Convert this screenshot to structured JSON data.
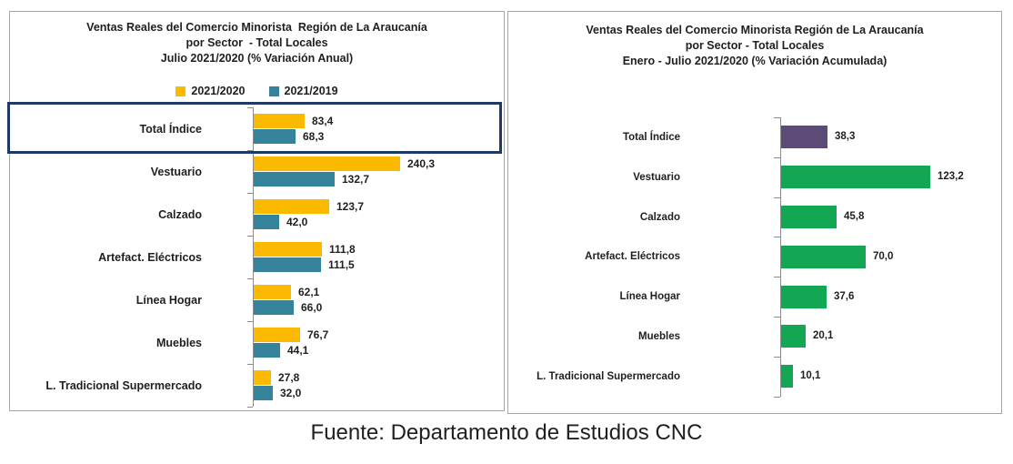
{
  "footer": {
    "source": "Fuente: Departamento de Estudios CNC"
  },
  "colors": {
    "yellow": "#FBBA00",
    "teal": "#35839B",
    "green": "#13A653",
    "purple": "#5C4A77",
    "highlight_border": "#1F3864",
    "panel_border": "#A6A6A6",
    "axis": "#8C8C8C",
    "text": "#1F1F1F"
  },
  "chart_data": [
    {
      "type": "bar",
      "orientation": "horizontal",
      "title": "Ventas Reales del Comercio Minorista  Región de La Araucanía",
      "subtitle": "por Sector  - Total Locales",
      "period": "Julio 2021/2020 (% Variación Anual)",
      "legend_position": "top",
      "grid": false,
      "xlim": [
        0,
        400
      ],
      "value_format": "decimal-comma, 1 decimal",
      "highlighted_category": "Total Índice",
      "categories": [
        "Total Índice",
        "Vestuario",
        "Calzado",
        "Artefact. Eléctricos",
        "Línea Hogar",
        "Muebles",
        "L. Tradicional Supermercado"
      ],
      "series": [
        {
          "name": "2021/2020",
          "color": "#FBBA00",
          "values": [
            83.4,
            240.3,
            123.7,
            111.8,
            62.1,
            76.7,
            27.8
          ],
          "labels": [
            "83,4",
            "240,3",
            "123,7",
            "111,8",
            "62,1",
            "76,7",
            "27,8"
          ]
        },
        {
          "name": "2021/2019",
          "color": "#35839B",
          "values": [
            68.3,
            132.7,
            42.0,
            111.5,
            66.0,
            44.1,
            32.0
          ],
          "labels": [
            "68,3",
            "132,7",
            "42,0",
            "111,5",
            "66,0",
            "44,1",
            "32,0"
          ]
        }
      ]
    },
    {
      "type": "bar",
      "orientation": "horizontal",
      "title": "Ventas Reales del Comercio Minorista Región de La Araucanía",
      "subtitle": "por Sector - Total Locales",
      "period": "Enero - Julio 2021/2020 (% Variación Acumulada)",
      "legend_position": "none",
      "grid": false,
      "xlim": [
        0,
        185
      ],
      "value_format": "decimal-comma, 1 decimal",
      "categories": [
        "Total Índice",
        "Vestuario",
        "Calzado",
        "Artefact. Eléctricos",
        "Línea Hogar",
        "Muebles",
        "L. Tradicional Supermercado"
      ],
      "series": [
        {
          "color": "#13A653",
          "first_bar_color": "#5C4A77",
          "values": [
            38.3,
            123.2,
            45.8,
            70.0,
            37.6,
            20.1,
            10.1
          ],
          "labels": [
            "38,3",
            "123,2",
            "45,8",
            "70,0",
            "37,6",
            "20,1",
            "10,1"
          ]
        }
      ]
    }
  ]
}
